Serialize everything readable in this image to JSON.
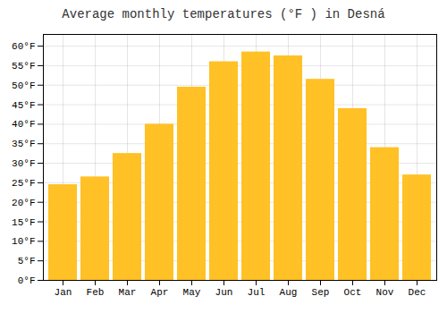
{
  "chart_data": {
    "type": "bar",
    "title": "Average monthly temperatures (°F ) in Desná",
    "categories": [
      "Jan",
      "Feb",
      "Mar",
      "Apr",
      "May",
      "Jun",
      "Jul",
      "Aug",
      "Sep",
      "Oct",
      "Nov",
      "Dec"
    ],
    "values": [
      24.5,
      26.5,
      32.5,
      40.0,
      49.5,
      56.0,
      58.5,
      57.5,
      51.5,
      44.0,
      34.0,
      27.0
    ],
    "color": "#FFC125",
    "ylim": [
      0,
      63
    ],
    "yticks": [
      {
        "value": 0,
        "label": "0°F"
      },
      {
        "value": 5,
        "label": "5°F"
      },
      {
        "value": 10,
        "label": "10°F"
      },
      {
        "value": 15,
        "label": "15°F"
      },
      {
        "value": 20,
        "label": "20°F"
      },
      {
        "value": 25,
        "label": "25°F"
      },
      {
        "value": 30,
        "label": "30°F"
      },
      {
        "value": 35,
        "label": "35°F"
      },
      {
        "value": 40,
        "label": "40°F"
      },
      {
        "value": 45,
        "label": "45°F"
      },
      {
        "value": 50,
        "label": "50°F"
      },
      {
        "value": 55,
        "label": "55°F"
      },
      {
        "value": 60,
        "label": "60°F"
      }
    ],
    "grid": true
  }
}
